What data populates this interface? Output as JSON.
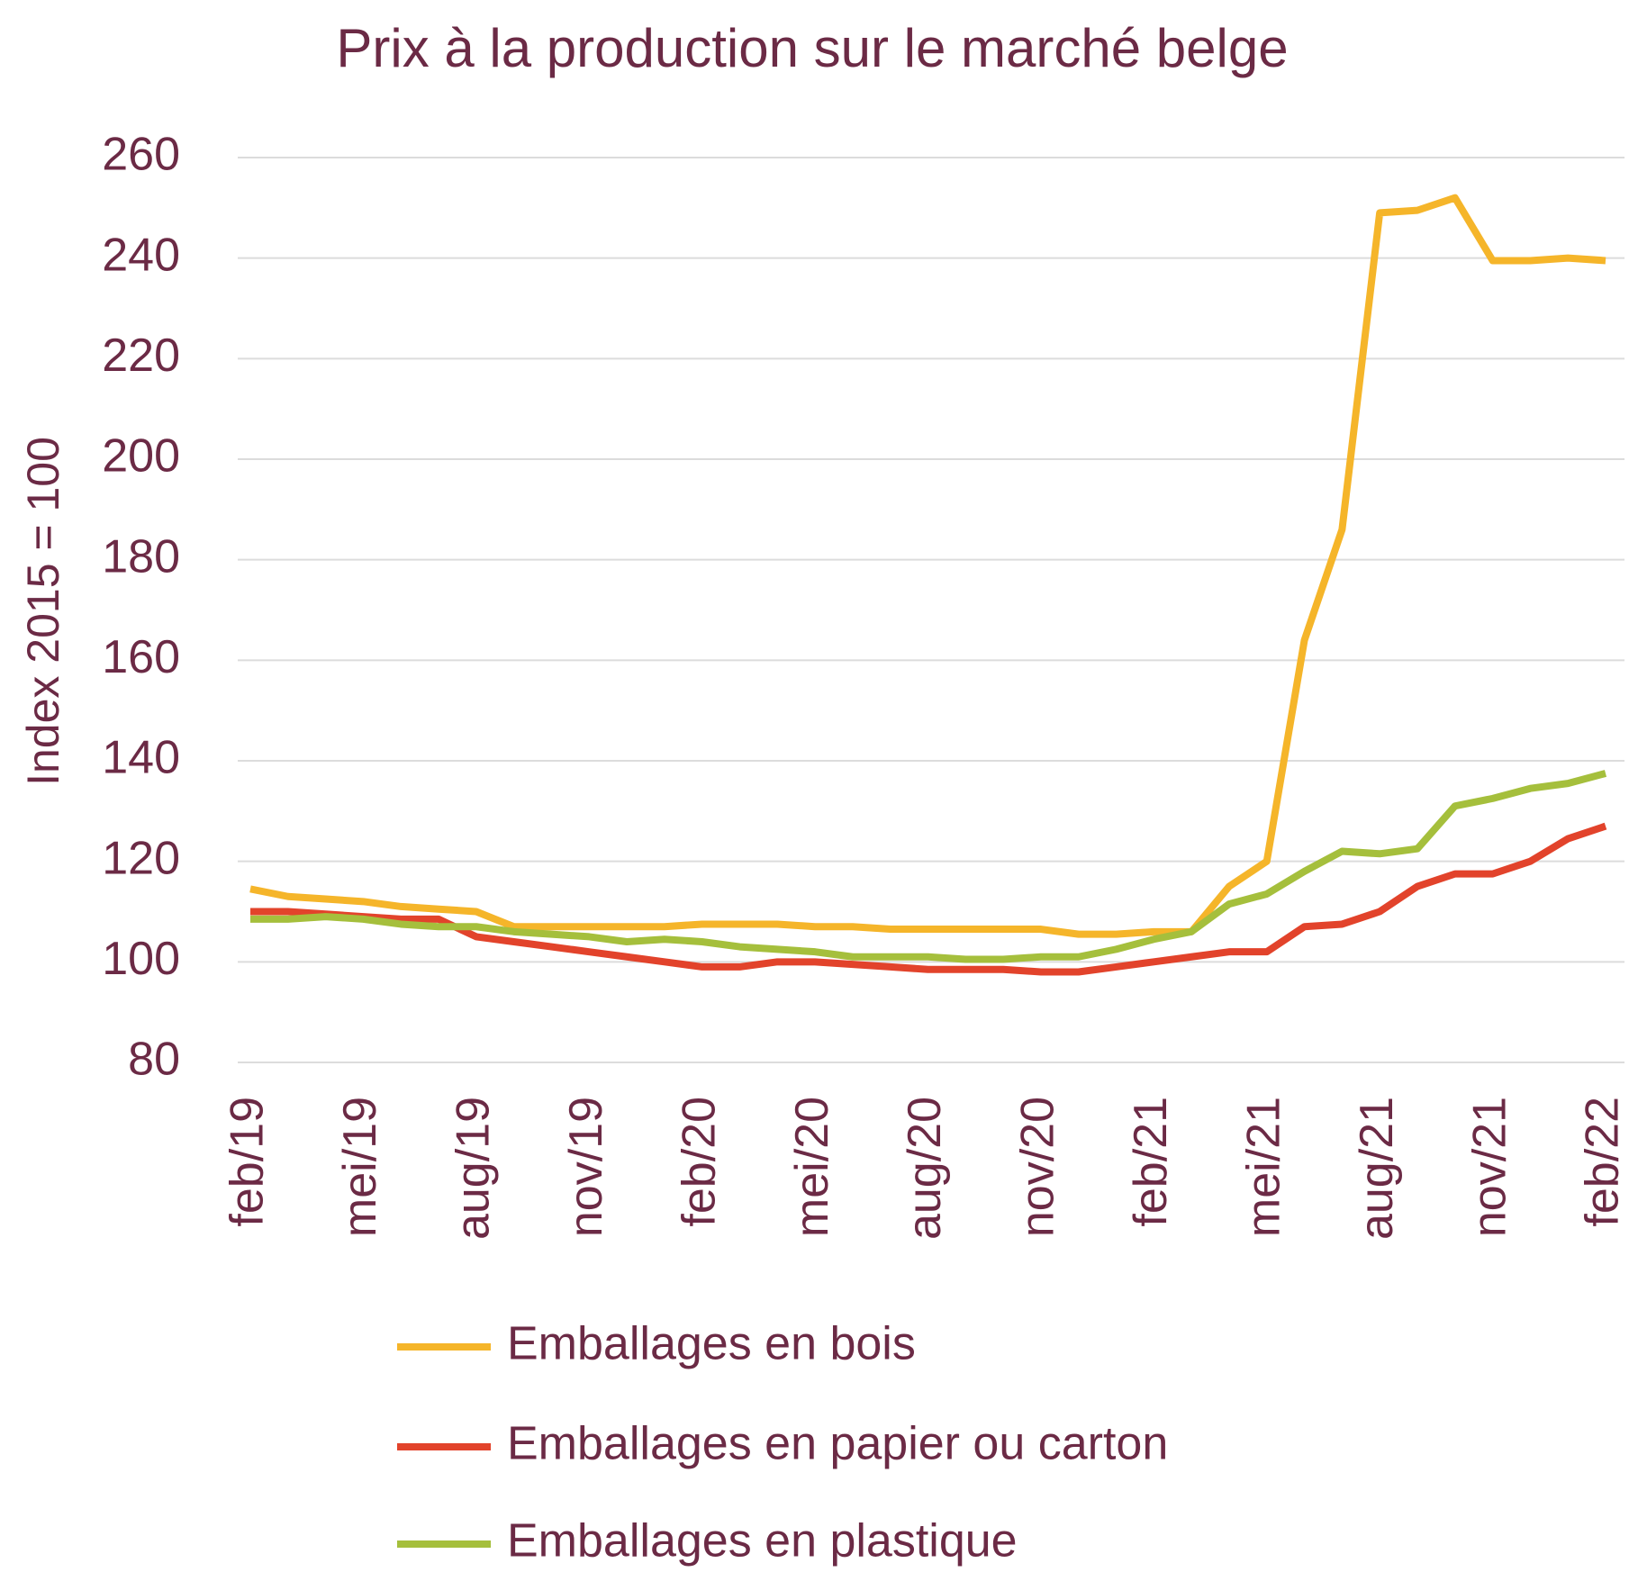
{
  "chart_data": {
    "type": "line",
    "title": "Prix à la production sur le marché belge",
    "y_label": "Index 2015 = 100",
    "categories": [
      "feb/19",
      null,
      null,
      "mei/19",
      null,
      null,
      "aug/19",
      null,
      null,
      "nov/19",
      null,
      null,
      "feb/20",
      null,
      null,
      "mei/20",
      null,
      null,
      "aug/20",
      null,
      null,
      "nov/20",
      null,
      null,
      "feb/21",
      null,
      null,
      "mei/21",
      null,
      null,
      "aug/21",
      null,
      null,
      "nov/21",
      null,
      null,
      "feb/22"
    ],
    "series": [
      {
        "name": "Emballages en bois",
        "color": "#f5b52a",
        "values": [
          114.5,
          113,
          112.5,
          112,
          111,
          110.5,
          110,
          107,
          107,
          107,
          107,
          107,
          107.5,
          107.5,
          107.5,
          107,
          107,
          106.5,
          106.5,
          106.5,
          106.5,
          106.5,
          105.5,
          105.5,
          106,
          106,
          115,
          120,
          164,
          186,
          249,
          249.5,
          252,
          239.5,
          239.5,
          240,
          239.5
        ]
      },
      {
        "name": "Emballages en papier ou carton",
        "color": "#e2432b",
        "values": [
          110,
          110,
          109.5,
          109,
          108.5,
          108.5,
          105,
          104,
          103,
          102,
          101,
          100,
          99,
          99,
          100,
          100,
          99.5,
          99,
          98.5,
          98.5,
          98.5,
          98,
          98,
          99,
          100,
          101,
          102,
          102,
          107,
          107.5,
          110,
          115,
          117.5,
          117.5,
          120,
          124.5,
          127
        ]
      },
      {
        "name": "Emballages en plastique",
        "color": "#a5bf3c",
        "values": [
          108.5,
          108.5,
          109,
          108.5,
          107.5,
          107,
          107,
          106,
          105.5,
          105,
          104,
          104.5,
          104,
          103,
          102.5,
          102,
          101,
          101,
          101,
          100.5,
          100.5,
          101,
          101,
          102.5,
          104.5,
          106,
          111.5,
          113.5,
          118,
          122,
          121.5,
          122.5,
          131,
          132.5,
          134.5,
          135.5,
          137.5
        ]
      }
    ],
    "ylim": [
      80,
      260
    ],
    "yticks": [
      80,
      100,
      120,
      140,
      160,
      180,
      200,
      220,
      240,
      260
    ],
    "grid": true,
    "legend": "bottom"
  }
}
